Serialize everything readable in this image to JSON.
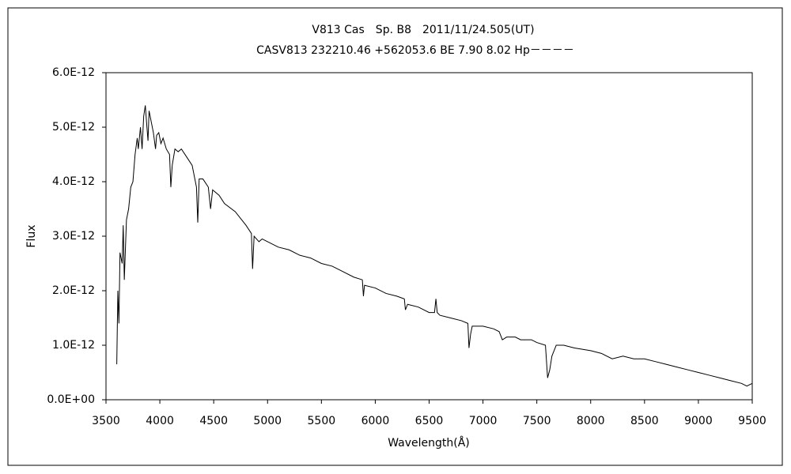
{
  "chart_data": {
    "type": "line",
    "title": "V813 Cas　Sp. B8　2011/11/24.505(UT)",
    "subtitle": "CASV813 232210.46 +562053.6 BE 7.90 8.02 Hp－－－－",
    "x_label": "Wavelength(Å)",
    "y_label": "Flux",
    "xlim": [
      3500,
      9500
    ],
    "xticks": [
      3500,
      4000,
      4500,
      5000,
      5500,
      6000,
      6500,
      7000,
      7500,
      8000,
      8500,
      9000,
      9500
    ],
    "ylim": [
      0,
      6e-12
    ],
    "yticks": [
      {
        "value": 0,
        "label": "0.0E+00"
      },
      {
        "value": 1e-12,
        "label": "1.0E-12"
      },
      {
        "value": 2e-12,
        "label": "2.0E-12"
      },
      {
        "value": 3e-12,
        "label": "3.0E-12"
      },
      {
        "value": 4e-12,
        "label": "4.0E-12"
      },
      {
        "value": 5e-12,
        "label": "5.0E-12"
      },
      {
        "value": 6e-12,
        "label": "6.0E-12"
      }
    ],
    "color": "#000000",
    "x": [
      3600,
      3610,
      3620,
      3630,
      3650,
      3660,
      3670,
      3690,
      3710,
      3730,
      3750,
      3770,
      3790,
      3800,
      3820,
      3835,
      3850,
      3865,
      3880,
      3890,
      3900,
      3920,
      3940,
      3960,
      3970,
      3990,
      4010,
      4030,
      4060,
      4090,
      4102,
      4115,
      4140,
      4170,
      4200,
      4250,
      4300,
      4340,
      4352,
      4365,
      4400,
      4450,
      4471,
      4490,
      4550,
      4600,
      4700,
      4800,
      4850,
      4861,
      4875,
      4920,
      4950,
      5000,
      5100,
      5200,
      5300,
      5400,
      5500,
      5600,
      5700,
      5800,
      5880,
      5890,
      5900,
      6000,
      6100,
      6200,
      6270,
      6280,
      6300,
      6400,
      6500,
      6550,
      6563,
      6575,
      6600,
      6700,
      6800,
      6860,
      6870,
      6885,
      6900,
      7000,
      7100,
      7150,
      7180,
      7220,
      7250,
      7300,
      7350,
      7450,
      7500,
      7580,
      7600,
      7620,
      7640,
      7680,
      7750,
      7850,
      8000,
      8100,
      8200,
      8300,
      8400,
      8500,
      8600,
      8700,
      8800,
      8900,
      9000,
      9100,
      9200,
      9300,
      9400,
      9450,
      9500
    ],
    "values": [
      6.5e-13,
      2e-12,
      1.4e-12,
      2.7e-12,
      2.5e-12,
      3.2e-12,
      2.2e-12,
      3.3e-12,
      3.5e-12,
      3.9e-12,
      4e-12,
      4.5e-12,
      4.8e-12,
      4.6e-12,
      5e-12,
      4.6e-12,
      5.2e-12,
      5.4e-12,
      5e-12,
      4.75e-12,
      5.3e-12,
      5.1e-12,
      4.9e-12,
      4.6e-12,
      4.85e-12,
      4.9e-12,
      4.7e-12,
      4.8e-12,
      4.6e-12,
      4.5e-12,
      3.9e-12,
      4.3e-12,
      4.6e-12,
      4.55e-12,
      4.6e-12,
      4.45e-12,
      4.3e-12,
      3.9e-12,
      3.25e-12,
      4.05e-12,
      4.05e-12,
      3.9e-12,
      3.5e-12,
      3.85e-12,
      3.75e-12,
      3.6e-12,
      3.45e-12,
      3.2e-12,
      3.05e-12,
      2.4e-12,
      3e-12,
      2.9e-12,
      2.95e-12,
      2.9e-12,
      2.8e-12,
      2.75e-12,
      2.65e-12,
      2.6e-12,
      2.5e-12,
      2.45e-12,
      2.35e-12,
      2.25e-12,
      2.2e-12,
      1.9e-12,
      2.1e-12,
      2.05e-12,
      1.95e-12,
      1.9e-12,
      1.85e-12,
      1.65e-12,
      1.75e-12,
      1.7e-12,
      1.6e-12,
      1.6e-12,
      1.85e-12,
      1.6e-12,
      1.55e-12,
      1.5e-12,
      1.45e-12,
      1.4e-12,
      9.5e-13,
      1.2e-12,
      1.35e-12,
      1.35e-12,
      1.3e-12,
      1.25e-12,
      1.1e-12,
      1.15e-12,
      1.15e-12,
      1.15e-12,
      1.1e-12,
      1.1e-12,
      1.05e-12,
      1e-12,
      4e-13,
      5.5e-13,
      8e-13,
      1e-12,
      1e-12,
      9.5e-13,
      9e-13,
      8.5e-13,
      7.5e-13,
      8e-13,
      7.5e-13,
      7.5e-13,
      7e-13,
      6.5e-13,
      6e-13,
      5.5e-13,
      5e-13,
      4.5e-13,
      4e-13,
      3.5e-13,
      3e-13,
      2.5e-13,
      3e-13
    ]
  }
}
